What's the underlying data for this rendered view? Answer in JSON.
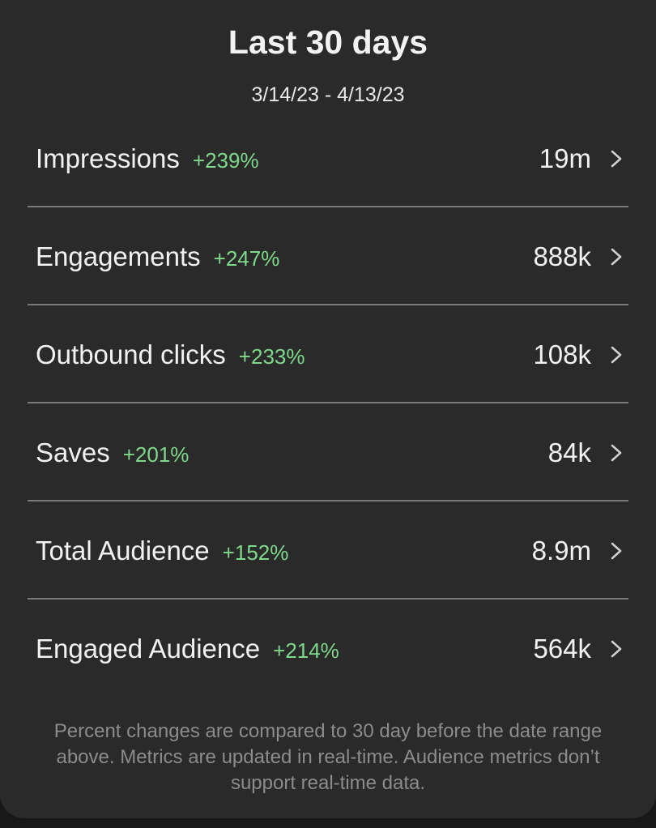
{
  "header": {
    "title": "Last 30 days",
    "date_range": "3/14/23 - 4/13/23"
  },
  "colors": {
    "background": "#2a2a2a",
    "positive_change": "#7fd98a",
    "divider": "#7a7a7a",
    "footnote": "#8c8c8c"
  },
  "metrics": [
    {
      "label": "Impressions",
      "change": "+239%",
      "value": "19m",
      "icon": "chevron-right-icon"
    },
    {
      "label": "Engagements",
      "change": "+247%",
      "value": "888k",
      "icon": "chevron-right-icon"
    },
    {
      "label": "Outbound clicks",
      "change": "+233%",
      "value": "108k",
      "icon": "chevron-right-icon"
    },
    {
      "label": "Saves",
      "change": "+201%",
      "value": "84k",
      "icon": "chevron-right-icon"
    },
    {
      "label": "Total Audience",
      "change": "+152%",
      "value": "8.9m",
      "icon": "chevron-right-icon"
    },
    {
      "label": "Engaged Audience",
      "change": "+214%",
      "value": "564k",
      "icon": "chevron-right-icon"
    }
  ],
  "footnote": "Percent changes are compared to 30 day before the date range above. Metrics are updated in real-time. Audience metrics don’t support real-time data."
}
